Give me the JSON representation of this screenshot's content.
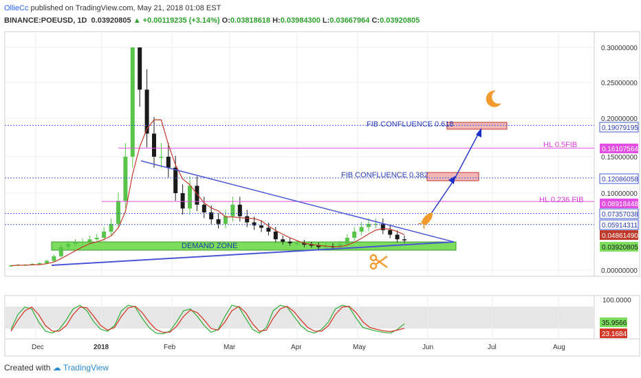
{
  "header": {
    "user": "OllieCc",
    "published": "published on TradingView.com, May 21, 2018 01:08 EST",
    "symbol": "BINANCE:POEUSD, 1D",
    "last": "0.03920805",
    "change": "+0.00119235 (+3.14%)",
    "o_label": "O:",
    "o": "0.03818618",
    "h_label": "H:",
    "h": "0.03984300",
    "l_label": "L:",
    "l": "0.03667964",
    "c_label": "C:",
    "c": "0.03920805"
  },
  "footer": {
    "created": "Created with",
    "brand": "TradingView"
  },
  "colors": {
    "bull": "#26a69a",
    "bear": "#1a1a1a",
    "green_bar": "#58c54a",
    "ma": "#c0392b",
    "trend": "#4a55d6",
    "fib_line": "#3d5bd6",
    "hl_line": "#e34fe3",
    "demand": "#7cdc5c",
    "target_box": "#f2b6b6",
    "stoch_k": "#3cb043",
    "stoch_d": "#d43a2a",
    "icon_orange": "#f29a2e"
  },
  "annotations": {
    "fib_618": "FIB CONFLUENCE 0.618",
    "fib_382": "FIB CONFLUENCE 0.382",
    "hl_05": "HL 0.5FIB",
    "hl_0236": "HL 0.236 FIB",
    "demand": "DEMAND ZONE"
  },
  "chart_data": [
    {
      "type": "candlestick",
      "title": "BINANCE:POEUSD, 1D",
      "x_ticks": [
        "Dec",
        "2018",
        "Feb",
        "Mar",
        "Apr",
        "May",
        "Jun",
        "Jul",
        "Aug"
      ],
      "y_ticks": [
        "0.30000000",
        "0.25000000",
        "0.20000000",
        "0.15000000",
        "0.10000000",
        "0.00000000"
      ],
      "ylim": [
        -0.02,
        0.32
      ],
      "y_scale": "log",
      "grid": true,
      "price_labels": [
        {
          "value": "0.19079195",
          "kind": "fib"
        },
        {
          "value": "0.16107564",
          "kind": "hl"
        },
        {
          "value": "0.12086058",
          "kind": "fib"
        },
        {
          "value": "0.08918448",
          "kind": "hl"
        },
        {
          "value": "0.07357038",
          "kind": "fib"
        },
        {
          "value": "0.05914311",
          "kind": "fib"
        },
        {
          "value": "0.04861490",
          "kind": "ma"
        },
        {
          "value": "0.03920805",
          "kind": "last"
        }
      ],
      "close_path": [
        0.006,
        0.007,
        0.007,
        0.008,
        0.009,
        0.012,
        0.018,
        0.03,
        0.034,
        0.036,
        0.037,
        0.04,
        0.042,
        0.05,
        0.06,
        0.09,
        0.15,
        0.3,
        0.24,
        0.18,
        0.15,
        0.15,
        0.135,
        0.1,
        0.08,
        0.11,
        0.085,
        0.075,
        0.066,
        0.06,
        0.07,
        0.085,
        0.07,
        0.062,
        0.058,
        0.055,
        0.05,
        0.04,
        0.037,
        0.035,
        0.035,
        0.033,
        0.032,
        0.03,
        0.031,
        0.03,
        0.034,
        0.042,
        0.05,
        0.056,
        0.06,
        0.06,
        0.052,
        0.046,
        0.04,
        0.039
      ]
    },
    {
      "type": "line",
      "title": "Stochastic RSI",
      "y_ticks": [
        "100.0000"
      ],
      "last_values": [
        "35.9566",
        "23.1684"
      ],
      "series": [
        {
          "values": [
            20,
            60,
            80,
            75,
            40,
            15,
            10,
            20,
            45,
            75,
            85,
            70,
            40,
            20,
            15,
            30,
            70,
            85,
            80,
            50,
            25,
            10,
            8,
            15,
            40,
            70,
            75,
            55,
            30,
            12,
            20,
            55,
            85,
            80,
            50,
            20,
            10,
            25,
            70,
            85,
            80,
            55,
            30,
            15,
            10,
            20,
            40,
            75,
            85,
            80,
            50,
            25,
            20,
            15,
            12,
            10,
            20,
            35
          ]
        },
        {
          "values": [
            15,
            45,
            70,
            80,
            60,
            30,
            15,
            15,
            30,
            60,
            80,
            78,
            55,
            30,
            18,
            25,
            55,
            78,
            82,
            65,
            40,
            20,
            12,
            12,
            28,
            55,
            72,
            65,
            45,
            22,
            18,
            40,
            70,
            82,
            65,
            35,
            15,
            18,
            50,
            75,
            82,
            68,
            45,
            25,
            15,
            15,
            30,
            60,
            80,
            82,
            65,
            40,
            25,
            20,
            16,
            14,
            18,
            23
          ]
        }
      ]
    }
  ]
}
